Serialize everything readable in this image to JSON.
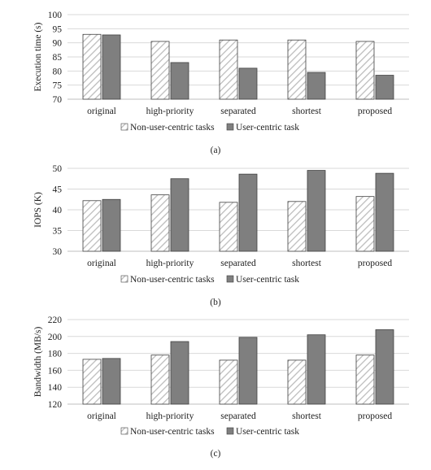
{
  "chart_data": [
    {
      "type": "bar",
      "caption": "(a)",
      "ylabel": "Execution time (s)",
      "ylim": [
        70,
        100
      ],
      "yticks": [
        70,
        75,
        80,
        85,
        90,
        95,
        100
      ],
      "grid": true,
      "legend": "bottom",
      "categories": [
        "original",
        "high-priority",
        "separated",
        "shortest",
        "proposed"
      ],
      "series": [
        {
          "name": "Non-user-centric tasks",
          "values": [
            93,
            90.5,
            91,
            91,
            90.5
          ]
        },
        {
          "name": "User-centric task",
          "values": [
            92.8,
            83,
            81,
            79.5,
            78.5
          ]
        }
      ]
    },
    {
      "type": "bar",
      "caption": "(b)",
      "ylabel": "IOPS (K)",
      "ylim": [
        30,
        50
      ],
      "yticks": [
        30,
        35,
        40,
        45,
        50
      ],
      "grid": true,
      "legend": "bottom",
      "categories": [
        "original",
        "high-priority",
        "separated",
        "shortest",
        "proposed"
      ],
      "series": [
        {
          "name": "Non-user-centric tasks",
          "values": [
            42.2,
            43.6,
            41.8,
            42,
            43.2
          ]
        },
        {
          "name": "User-centric task",
          "values": [
            42.5,
            47.5,
            48.6,
            49.5,
            48.8
          ]
        }
      ]
    },
    {
      "type": "bar",
      "caption": "(c)",
      "ylabel": "Bandwidth (MB/s)",
      "ylim": [
        120,
        220
      ],
      "yticks": [
        120,
        140,
        160,
        180,
        200,
        220
      ],
      "grid": true,
      "legend": "bottom",
      "categories": [
        "original",
        "high-priority",
        "separated",
        "shortest",
        "proposed"
      ],
      "series": [
        {
          "name": "Non-user-centric tasks",
          "values": [
            173,
            178,
            172,
            172,
            178
          ]
        },
        {
          "name": "User-centric task",
          "values": [
            174,
            194,
            199,
            202,
            208
          ]
        }
      ]
    }
  ],
  "colors": {
    "user_bar": "#7f7f7f",
    "hatch_stroke": "#bdbdbd",
    "grid": "#d9d9d9",
    "bar_edge": "#404040"
  }
}
